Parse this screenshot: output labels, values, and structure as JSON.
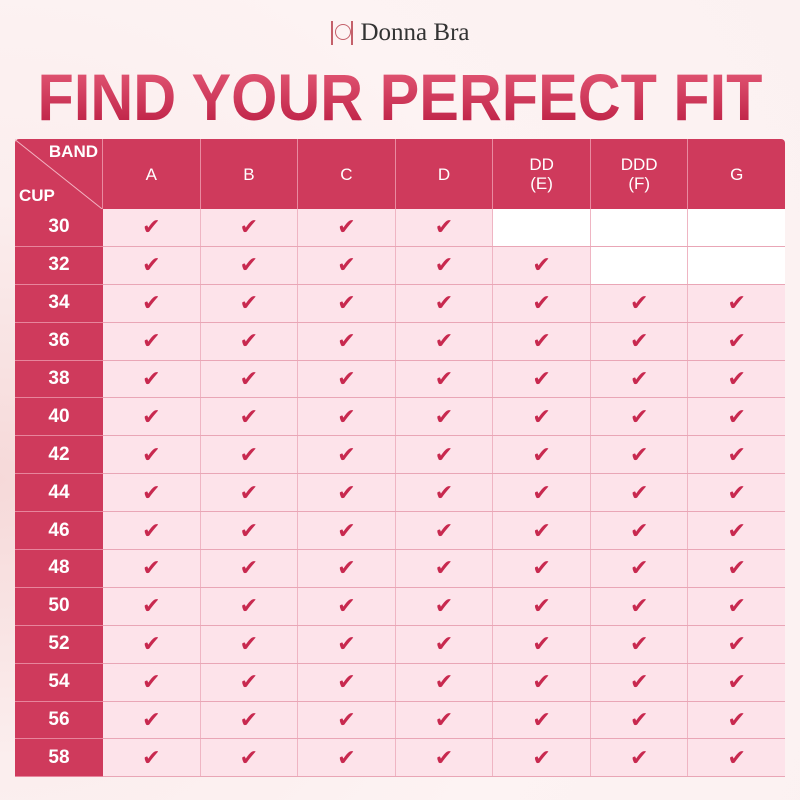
{
  "brand": {
    "name": "Donna Bra",
    "logo": "donna-bra-logo"
  },
  "title": "FIND YOUR PERFECT FIT",
  "table": {
    "corner_top": "BAND",
    "corner_bottom": "CUP",
    "columns": [
      {
        "l1": "A",
        "l2": ""
      },
      {
        "l1": "B",
        "l2": ""
      },
      {
        "l1": "C",
        "l2": ""
      },
      {
        "l1": "D",
        "l2": ""
      },
      {
        "l1": "DD",
        "l2": "(E)"
      },
      {
        "l1": "DDD",
        "l2": "(F)"
      },
      {
        "l1": "G",
        "l2": ""
      }
    ],
    "check_icon": "checkmark-icon",
    "rows": [
      {
        "band": "30",
        "available": [
          true,
          true,
          true,
          true,
          false,
          false,
          false
        ]
      },
      {
        "band": "32",
        "available": [
          true,
          true,
          true,
          true,
          true,
          false,
          false
        ]
      },
      {
        "band": "34",
        "available": [
          true,
          true,
          true,
          true,
          true,
          true,
          true
        ]
      },
      {
        "band": "36",
        "available": [
          true,
          true,
          true,
          true,
          true,
          true,
          true
        ]
      },
      {
        "band": "38",
        "available": [
          true,
          true,
          true,
          true,
          true,
          true,
          true
        ]
      },
      {
        "band": "40",
        "available": [
          true,
          true,
          true,
          true,
          true,
          true,
          true
        ]
      },
      {
        "band": "42",
        "available": [
          true,
          true,
          true,
          true,
          true,
          true,
          true
        ]
      },
      {
        "band": "44",
        "available": [
          true,
          true,
          true,
          true,
          true,
          true,
          true
        ]
      },
      {
        "band": "46",
        "available": [
          true,
          true,
          true,
          true,
          true,
          true,
          true
        ]
      },
      {
        "band": "48",
        "available": [
          true,
          true,
          true,
          true,
          true,
          true,
          true
        ]
      },
      {
        "band": "50",
        "available": [
          true,
          true,
          true,
          true,
          true,
          true,
          true
        ]
      },
      {
        "band": "52",
        "available": [
          true,
          true,
          true,
          true,
          true,
          true,
          true
        ]
      },
      {
        "band": "54",
        "available": [
          true,
          true,
          true,
          true,
          true,
          true,
          true
        ]
      },
      {
        "band": "56",
        "available": [
          true,
          true,
          true,
          true,
          true,
          true,
          true
        ]
      },
      {
        "band": "58",
        "available": [
          true,
          true,
          true,
          true,
          true,
          true,
          true
        ]
      }
    ]
  },
  "colors": {
    "accent": "#cf3a5c",
    "cell": "#fde3ea",
    "check": "#c8294f"
  }
}
